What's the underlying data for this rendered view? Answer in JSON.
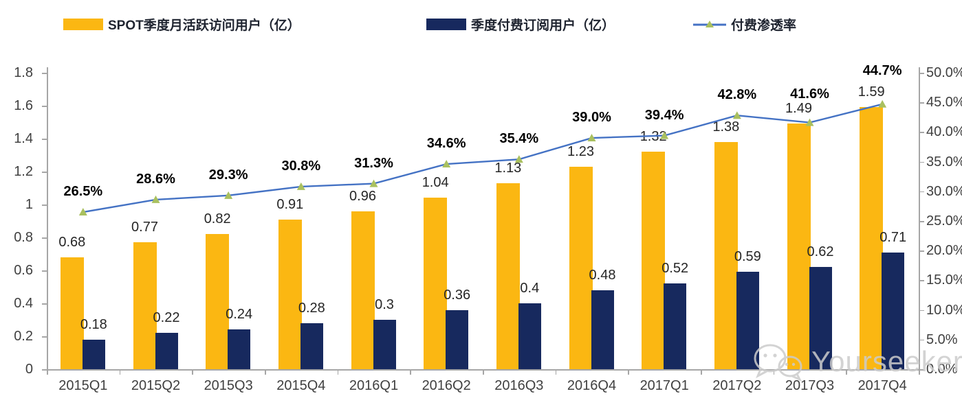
{
  "legend": [
    {
      "label": "SPOT季度月活跃访问用户（亿）",
      "swatch_color": "#FBB712"
    },
    {
      "label": "季度付费订阅用户（亿）",
      "swatch_color": "#17295E"
    },
    {
      "label": "付费渗透率",
      "line_color": "#4472C4",
      "marker_color": "#A9C05F"
    }
  ],
  "chart_data": {
    "type": "bar+line",
    "categories": [
      "2015Q1",
      "2015Q2",
      "2015Q3",
      "2015Q4",
      "2016Q1",
      "2016Q2",
      "2016Q3",
      "2016Q4",
      "2017Q1",
      "2017Q2",
      "2017Q3",
      "2017Q4"
    ],
    "series": [
      {
        "name": "SPOT季度月活跃访问用户（亿）",
        "type": "bar",
        "axis": "left",
        "color": "#FBB712",
        "values": [
          0.68,
          0.77,
          0.82,
          0.91,
          0.96,
          1.04,
          1.13,
          1.23,
          1.32,
          1.38,
          1.49,
          1.59
        ],
        "labels": [
          "0.68",
          "0.77",
          "0.82",
          "0.91",
          "0.96",
          "1.04",
          "1.13",
          "1.23",
          "1.32",
          "1.38",
          "1.49",
          "1.59"
        ]
      },
      {
        "name": "季度付费订阅用户（亿）",
        "type": "bar",
        "axis": "left",
        "color": "#17295E",
        "values": [
          0.18,
          0.22,
          0.24,
          0.28,
          0.3,
          0.36,
          0.4,
          0.48,
          0.52,
          0.59,
          0.62,
          0.71
        ],
        "labels": [
          "0.18",
          "0.22",
          "0.24",
          "0.28",
          "0.3",
          "0.36",
          "0.4",
          "0.48",
          "0.52",
          "0.59",
          "0.62",
          "0.71"
        ]
      },
      {
        "name": "付费渗透率",
        "type": "line",
        "axis": "right",
        "color": "#4472C4",
        "marker": "triangle",
        "marker_color": "#A9C05F",
        "values": [
          26.5,
          28.6,
          29.3,
          30.8,
          31.3,
          34.6,
          35.4,
          39.0,
          39.4,
          42.8,
          41.6,
          44.7
        ],
        "labels": [
          "26.5%",
          "28.6%",
          "29.3%",
          "30.8%",
          "31.3%",
          "34.6%",
          "35.4%",
          "39.0%",
          "39.4%",
          "42.8%",
          "41.6%",
          "44.7%"
        ]
      }
    ],
    "left_axis": {
      "min": 0,
      "max": 1.8,
      "ticks": [
        "1.8",
        "1.6",
        "1.4",
        "1.2",
        "1",
        "0.8",
        "0.6",
        "0.4",
        "0.2",
        "0"
      ]
    },
    "right_axis": {
      "min": 0,
      "max": 50,
      "ticks": [
        "50.0%",
        "45.0%",
        "40.0%",
        "35.0%",
        "30.0%",
        "25.0%",
        "20.0%",
        "15.0%",
        "10.0%",
        "5.0%",
        "0.0%"
      ]
    },
    "grid": false,
    "legend_position": "top"
  },
  "watermark": {
    "text": "Yourseeker",
    "icon": "wechat-icon"
  }
}
